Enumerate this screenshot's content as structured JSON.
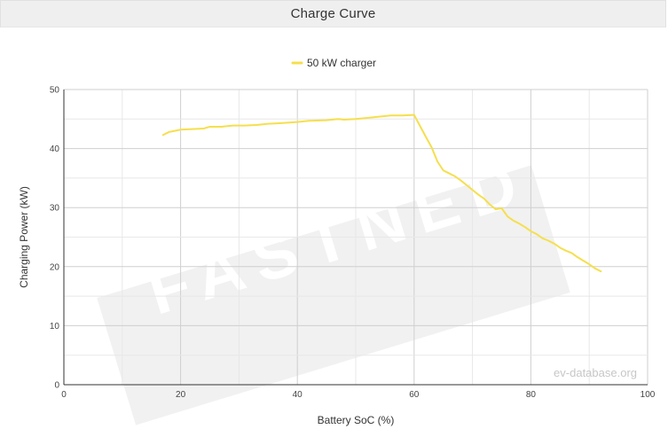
{
  "header": {
    "title": "Charge Curve"
  },
  "watermark": {
    "text": "FASTNED"
  },
  "credit": {
    "text": "ev-database.org"
  },
  "colors": {
    "series": "#f5df4d",
    "grid": "#d9d9d9",
    "header_bg": "#efefef",
    "watermark_bg": "#f1f1f1"
  },
  "chart_data": {
    "type": "line",
    "title": "",
    "xlabel": "Battery SoC (%)",
    "ylabel": "Charging Power (kW)",
    "xlim": [
      0,
      100
    ],
    "ylim": [
      0,
      50
    ],
    "x_ticks": [
      0,
      20,
      40,
      60,
      80,
      100
    ],
    "y_ticks": [
      0,
      10,
      20,
      30,
      40,
      50
    ],
    "grid": true,
    "legend_position": "top-center",
    "series": [
      {
        "name": "50 kW charger",
        "color": "#f5df4d",
        "points": [
          [
            17,
            42.3
          ],
          [
            18,
            42.8
          ],
          [
            19,
            43.0
          ],
          [
            20,
            43.2
          ],
          [
            22,
            43.3
          ],
          [
            24,
            43.4
          ],
          [
            25,
            43.7
          ],
          [
            27,
            43.7
          ],
          [
            29,
            43.9
          ],
          [
            31,
            43.9
          ],
          [
            33,
            44.0
          ],
          [
            35,
            44.2
          ],
          [
            37,
            44.3
          ],
          [
            40,
            44.5
          ],
          [
            42,
            44.7
          ],
          [
            45,
            44.8
          ],
          [
            47,
            45.0
          ],
          [
            48,
            44.9
          ],
          [
            50,
            45.0
          ],
          [
            52,
            45.2
          ],
          [
            54,
            45.4
          ],
          [
            56,
            45.6
          ],
          [
            58,
            45.6
          ],
          [
            60,
            45.7
          ],
          [
            62,
            42.0
          ],
          [
            63,
            40.2
          ],
          [
            64,
            37.8
          ],
          [
            65,
            36.3
          ],
          [
            66,
            35.8
          ],
          [
            67,
            35.3
          ],
          [
            68,
            34.6
          ],
          [
            69,
            33.8
          ],
          [
            70,
            33.0
          ],
          [
            71,
            32.2
          ],
          [
            72,
            31.5
          ],
          [
            73,
            30.5
          ],
          [
            74,
            29.7
          ],
          [
            75,
            29.9
          ],
          [
            76,
            28.5
          ],
          [
            77,
            27.8
          ],
          [
            78,
            27.3
          ],
          [
            79,
            26.7
          ],
          [
            80,
            26.0
          ],
          [
            81,
            25.5
          ],
          [
            82,
            24.8
          ],
          [
            83,
            24.4
          ],
          [
            84,
            23.9
          ],
          [
            85,
            23.2
          ],
          [
            86,
            22.7
          ],
          [
            87,
            22.3
          ],
          [
            88,
            21.6
          ],
          [
            89,
            21.0
          ],
          [
            90,
            20.4
          ],
          [
            91,
            19.7
          ],
          [
            92,
            19.2
          ]
        ]
      }
    ]
  }
}
